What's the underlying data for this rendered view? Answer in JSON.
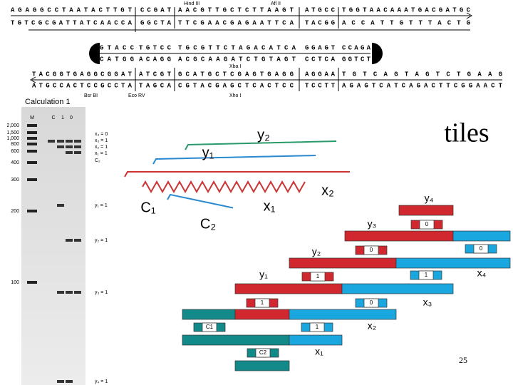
{
  "slide": {
    "title": "tiles",
    "page_number": "25"
  },
  "sequence_figure": {
    "enzymes_top": [
      "Hind III",
      "Afl II"
    ],
    "enzyme_middle": "Xba I",
    "enzymes_bottom": [
      "Bsr BI",
      "Eco RV",
      "Xho I"
    ],
    "rows": [
      [
        "AGAGGCCTAATACTTGT",
        "CCGAT",
        "AACGTTGCTCTTAAGT",
        "ATGCC",
        "TGGTAACAAATGACGATGC"
      ],
      [
        "TGTCGCGATTATCAACCA",
        "GGCTA",
        "TTCGAACGAGAATTCA",
        "TACGG",
        "ACCATTGTTTACTG"
      ],
      [
        "GTACC",
        "TGTCC",
        "TGCGTTCTAGACATCA",
        "GGAGT",
        "CCAGA"
      ],
      [
        "CATGG",
        "ACAGG",
        "ACGCAAGATCTGTAGT",
        "CCTCA",
        "GGTCT"
      ],
      [
        "TACGGTGAGGCGGAT",
        "ATCGT",
        "GCATGCTCGAGTGAGG",
        "AGGAA",
        "TGTCAGTAGTCTGAAG"
      ],
      [
        "ATGCCACTCCGCCTA",
        "TAGCA",
        "CGTACGAGCTCACTCC",
        "TCCTT",
        "AGAGTCATCAGACTTCGGAACT"
      ]
    ]
  },
  "gel": {
    "title": "Calculation 1",
    "lanes": [
      "M",
      "C",
      "1",
      "0"
    ],
    "size_markers": [
      "2,000",
      "1,500",
      "1,000",
      "800",
      "600",
      "400",
      "300",
      "200",
      "100"
    ],
    "band_labels": [
      "x₄ = 0",
      "x₃ = 1",
      "x₂ = 1",
      "x₁ = 1",
      "C₂",
      "y₁ = 1",
      "y₂ = 1",
      "y₃ = 1",
      "y₄ = 1"
    ]
  },
  "molecule_labels": [
    "y₂",
    "y₁",
    "x₂",
    "C₁",
    "x₁",
    "C₂"
  ],
  "tile_diagram": {
    "tile_labels": [
      "y₄",
      "y₃",
      "y₂",
      "x₄",
      "y₁",
      "x₃",
      "x₂",
      "x₁"
    ],
    "box_labels": [
      "0",
      "0",
      "0",
      "1",
      "1",
      "1",
      "0",
      "C1",
      "1",
      "C2"
    ]
  }
}
